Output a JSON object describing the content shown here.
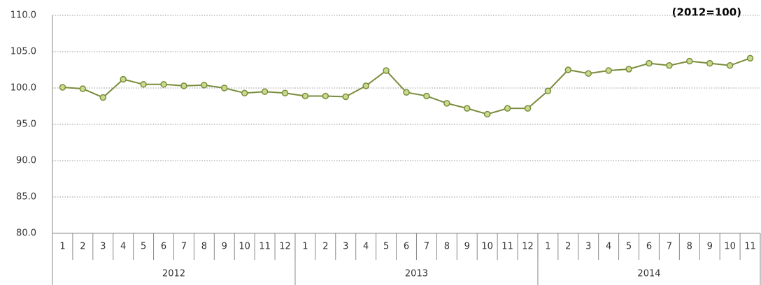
{
  "chart_data": {
    "type": "line",
    "annotation": "(2012=100)",
    "categories": [
      "1",
      "2",
      "3",
      "4",
      "5",
      "6",
      "7",
      "8",
      "9",
      "10",
      "11",
      "12",
      "1",
      "2",
      "3",
      "4",
      "5",
      "6",
      "7",
      "8",
      "9",
      "10",
      "11",
      "12",
      "1",
      "2",
      "3",
      "4",
      "5",
      "6",
      "7",
      "8",
      "9",
      "10",
      "11"
    ],
    "category_groups": [
      "2012",
      "2013",
      "2014"
    ],
    "series": [
      {
        "name": "index",
        "color": "#7a8c3c",
        "marker_color": "#c9dc8e",
        "values": [
          100.1,
          99.9,
          98.7,
          101.2,
          100.5,
          100.5,
          100.3,
          100.4,
          100.0,
          99.3,
          99.5,
          99.3,
          98.9,
          98.9,
          98.8,
          100.3,
          102.4,
          99.4,
          98.9,
          97.9,
          97.2,
          96.4,
          97.2,
          97.2,
          99.6,
          102.5,
          102.0,
          102.4,
          102.6,
          103.4,
          103.1,
          103.7,
          103.4,
          103.1,
          104.1
        ]
      }
    ],
    "ylim": [
      80,
      110
    ],
    "yticks": [
      {
        "value": 80,
        "label": "80.0"
      },
      {
        "value": 85,
        "label": "85.0"
      },
      {
        "value": 90,
        "label": "90.0"
      },
      {
        "value": 95,
        "label": "95.0"
      },
      {
        "value": 100,
        "label": "100.0"
      },
      {
        "value": 105,
        "label": "105.0"
      },
      {
        "value": 110,
        "label": "110.0"
      }
    ],
    "grid": true
  }
}
